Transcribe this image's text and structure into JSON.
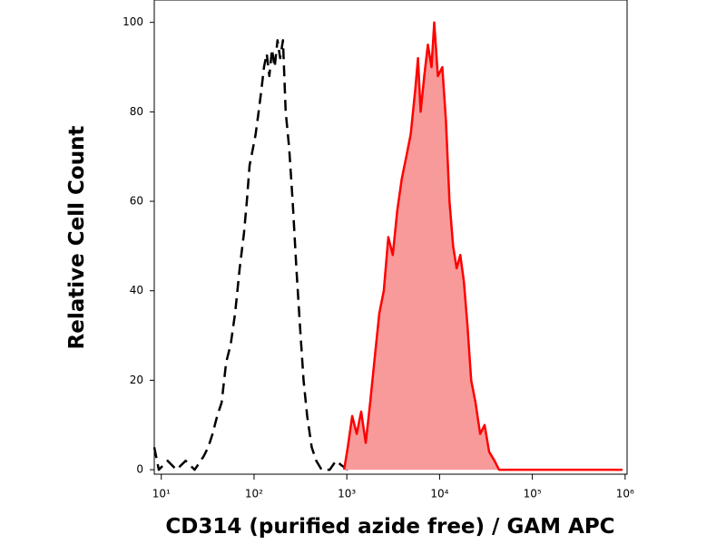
{
  "chart_data": {
    "type": "histogram-overlay",
    "x_label": "CD314 (purified azide free) / GAM APC",
    "y_label": "Relative Cell Count",
    "log_x": true,
    "xlim": [
      8.4,
      1050000
    ],
    "xticks": [
      {
        "value": 10,
        "label": "10¹"
      },
      {
        "value": 100,
        "label": "10²"
      },
      {
        "value": 1000,
        "label": "10³"
      },
      {
        "value": 10000,
        "label": "10⁴"
      },
      {
        "value": 100000,
        "label": "10⁵"
      },
      {
        "value": 1000000,
        "label": "10⁶"
      }
    ],
    "ylim": [
      -1,
      105
    ],
    "yticks": [
      0,
      20,
      40,
      60,
      80,
      100
    ],
    "series": [
      {
        "color": "#000000",
        "dashed": true,
        "x": [
          8.4,
          9.4,
          11.7,
          14.6,
          18.3,
          22.9,
          28.6,
          32,
          35.7,
          40,
          44.7,
          50,
          56,
          62.5,
          70,
          78,
          83.6,
          89.4,
          97.7,
          104,
          112,
          120,
          128,
          137,
          146,
          156,
          167,
          179,
          191,
          205,
          219,
          239,
          261,
          286,
          313,
          342,
          374,
          418,
          468,
          535,
          654,
          764,
          875,
          1023
        ],
        "values": [
          5,
          0,
          2,
          0,
          2,
          0,
          3,
          5,
          8,
          12,
          15,
          24,
          28,
          35,
          45,
          53,
          60,
          68,
          72,
          75,
          80,
          85,
          90,
          93,
          88,
          94,
          90,
          96,
          92,
          96,
          80,
          72,
          60,
          45,
          32,
          20,
          12,
          5,
          2,
          0,
          0,
          2,
          1,
          0
        ]
      },
      {
        "color": "#ff0000",
        "fill": "#f99a9a",
        "x": [
          935,
          1023,
          1143,
          1279,
          1429,
          1600,
          1787,
          2000,
          2239,
          2500,
          2799,
          3126,
          3499,
          3908,
          4375,
          4887,
          5470,
          5848,
          6252,
          6839,
          7482,
          8185,
          8750,
          9572,
          10690,
          11700,
          12790,
          14000,
          15280,
          16710,
          18280,
          20000,
          21880,
          24430,
          27350,
          30550,
          34200,
          39080,
          43750,
          935000
        ],
        "values": [
          0,
          5,
          12,
          8,
          13,
          6,
          15,
          25,
          35,
          40,
          52,
          48,
          58,
          65,
          70,
          75,
          85,
          92,
          80,
          88,
          95,
          90,
          100,
          88,
          90,
          78,
          60,
          50,
          45,
          48,
          42,
          32,
          20,
          15,
          8,
          10,
          4,
          2,
          0,
          0
        ]
      }
    ]
  }
}
